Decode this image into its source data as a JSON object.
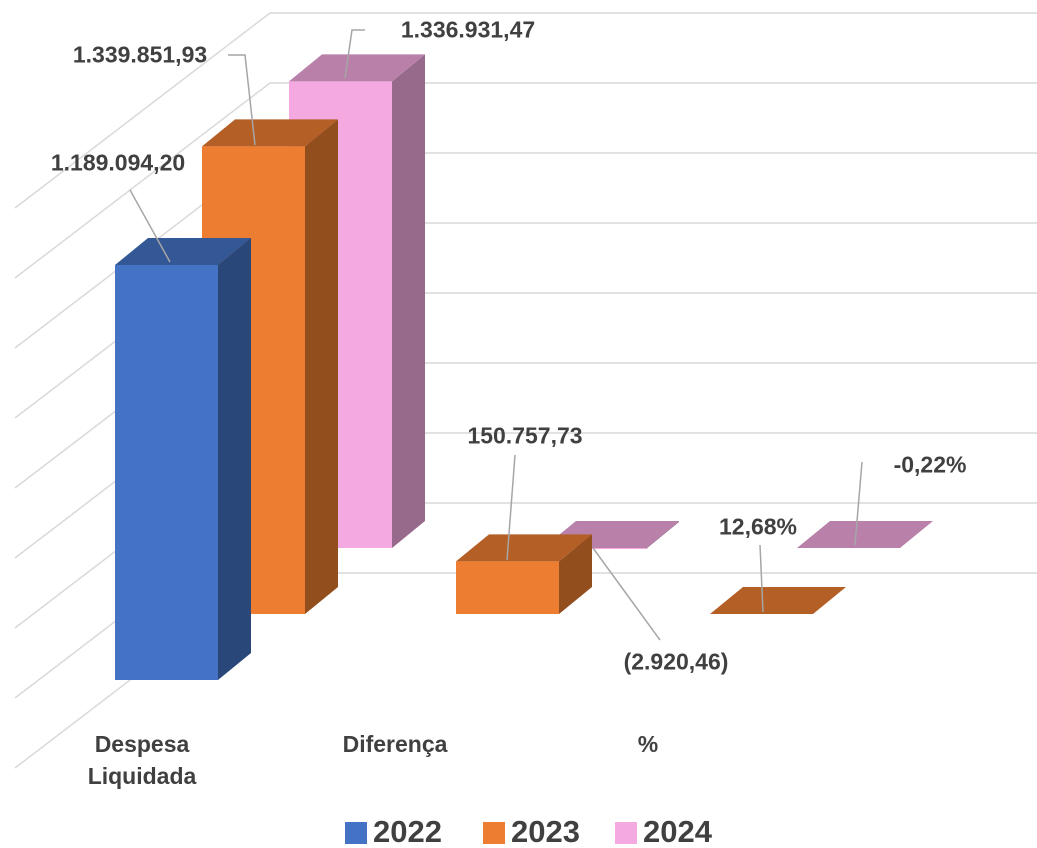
{
  "chart_data": {
    "type": "bar3d",
    "categories": [
      "Despesa Liquidada",
      "Diferença",
      "%"
    ],
    "series": [
      {
        "name": "2022",
        "color": "#4472c4",
        "values": [
          1189094.2,
          null,
          null
        ],
        "value_labels": [
          "1.189.094,20",
          null,
          null
        ]
      },
      {
        "name": "2023",
        "color": "#ed7d31",
        "values": [
          1339851.93,
          150757.73,
          12.68
        ],
        "value_labels": [
          "1.339.851,93",
          "150.757,73",
          "12,68%"
        ]
      },
      {
        "name": "2024",
        "color": "#f4a9e0",
        "values": [
          1336931.47,
          -2920.46,
          -0.22
        ],
        "value_labels": [
          "1.336.931,47",
          "(2.920,46)",
          "-0,22%"
        ]
      }
    ],
    "ylim": [
      0,
      1600000
    ],
    "grid": true,
    "legend": "bottom"
  }
}
